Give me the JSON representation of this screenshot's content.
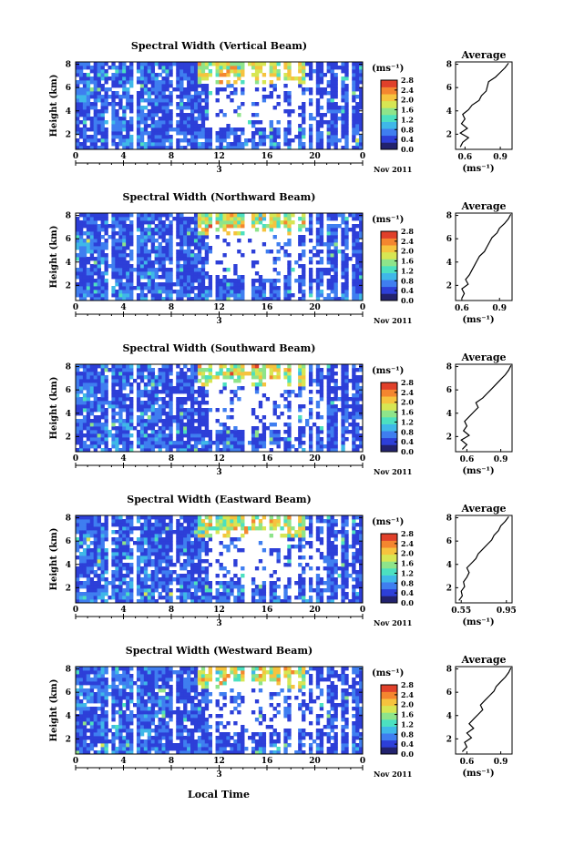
{
  "figure": {
    "xlabel": "Local Time",
    "date_label": "Nov 2011",
    "day_label": "3",
    "ylabel": "Height (km)",
    "colorbar_unit": "(ms⁻¹)",
    "profile_title": "Average",
    "profile_xlabel": "(ms⁻¹)"
  },
  "chart_data": [
    {
      "type": "heatmap",
      "title": "Spectral Width (Vertical Beam)",
      "xlabel": "Local Time",
      "ylabel": "Height (km)",
      "x_ticks": [
        "0",
        "4",
        "8",
        "12",
        "16",
        "20",
        "0"
      ],
      "y_ticks": [
        "2",
        "4",
        "6",
        "8"
      ],
      "xlim": [
        0,
        24
      ],
      "ylim": [
        0.7,
        8.2
      ],
      "colorbar": {
        "ticks": [
          "0.0",
          "0.4",
          "0.8",
          "1.2",
          "1.6",
          "2.0",
          "2.4",
          "2.8"
        ],
        "range": [
          0,
          2.8
        ]
      },
      "profile": {
        "title": "Average",
        "xlabel": "(ms⁻¹)",
        "x_ticks": [
          "0.6",
          "0.9"
        ],
        "xlim": [
          0.52,
          1.0
        ],
        "ylim": [
          0.7,
          8.2
        ],
        "heights": [
          0.9,
          1.3,
          1.7,
          2.1,
          2.5,
          2.9,
          3.3,
          3.7,
          4.1,
          4.5,
          4.9,
          5.3,
          5.7,
          6.1,
          6.5,
          6.9,
          7.3,
          7.7,
          8.1
        ],
        "values": [
          0.56,
          0.58,
          0.63,
          0.56,
          0.62,
          0.57,
          0.6,
          0.58,
          0.63,
          0.66,
          0.72,
          0.74,
          0.78,
          0.79,
          0.8,
          0.86,
          0.9,
          0.94,
          0.97
        ]
      }
    },
    {
      "type": "heatmap",
      "title": "Spectral Width (Northward Beam)",
      "xlabel": "Local Time",
      "ylabel": "Height (km)",
      "x_ticks": [
        "0",
        "4",
        "8",
        "12",
        "16",
        "20",
        "0"
      ],
      "y_ticks": [
        "2",
        "4",
        "6",
        "8"
      ],
      "xlim": [
        0,
        24
      ],
      "ylim": [
        0.7,
        8.2
      ],
      "colorbar": {
        "ticks": [
          "0.0",
          "0.4",
          "0.8",
          "1.2",
          "1.6",
          "2.0",
          "2.4",
          "2.8"
        ],
        "range": [
          0,
          2.8
        ]
      },
      "profile": {
        "title": "Average",
        "xlabel": "(ms⁻¹)",
        "x_ticks": [
          "0.6",
          "0.9"
        ],
        "xlim": [
          0.55,
          1.0
        ],
        "ylim": [
          0.7,
          8.2
        ],
        "heights": [
          0.9,
          1.3,
          1.7,
          2.1,
          2.5,
          2.9,
          3.3,
          3.7,
          4.1,
          4.5,
          4.9,
          5.3,
          5.7,
          6.1,
          6.5,
          6.9,
          7.3,
          7.7,
          8.1
        ],
        "values": [
          0.6,
          0.62,
          0.6,
          0.65,
          0.63,
          0.66,
          0.68,
          0.7,
          0.72,
          0.74,
          0.78,
          0.8,
          0.82,
          0.84,
          0.88,
          0.9,
          0.94,
          0.97,
          0.99
        ]
      }
    },
    {
      "type": "heatmap",
      "title": "Spectral Width (Southward Beam)",
      "xlabel": "Local Time",
      "ylabel": "Height (km)",
      "x_ticks": [
        "0",
        "4",
        "8",
        "12",
        "16",
        "20",
        "0"
      ],
      "y_ticks": [
        "2",
        "4",
        "6",
        "8"
      ],
      "xlim": [
        0,
        24
      ],
      "ylim": [
        0.7,
        8.2
      ],
      "colorbar": {
        "ticks": [
          "0.0",
          "0.4",
          "0.8",
          "1.2",
          "1.6",
          "2.0",
          "2.4",
          "2.8"
        ],
        "range": [
          0,
          2.8
        ]
      },
      "profile": {
        "title": "Average",
        "xlabel": "(ms⁻¹)",
        "x_ticks": [
          "0.6",
          "0.9"
        ],
        "xlim": [
          0.5,
          1.0
        ],
        "ylim": [
          0.7,
          8.2
        ],
        "heights": [
          0.9,
          1.3,
          1.7,
          2.1,
          2.5,
          2.9,
          3.3,
          3.7,
          4.1,
          4.5,
          4.9,
          5.3,
          5.7,
          6.1,
          6.5,
          6.9,
          7.3,
          7.7,
          8.1
        ],
        "values": [
          0.56,
          0.6,
          0.55,
          0.62,
          0.57,
          0.6,
          0.58,
          0.62,
          0.66,
          0.7,
          0.68,
          0.74,
          0.78,
          0.82,
          0.86,
          0.9,
          0.94,
          0.97,
          0.99
        ]
      }
    },
    {
      "type": "heatmap",
      "title": "Spectral Width (Eastward Beam)",
      "xlabel": "Local Time",
      "ylabel": "Height (km)",
      "x_ticks": [
        "0",
        "4",
        "8",
        "12",
        "16",
        "20",
        "0"
      ],
      "y_ticks": [
        "2",
        "4",
        "6",
        "8"
      ],
      "xlim": [
        0,
        24
      ],
      "ylim": [
        0.7,
        8.2
      ],
      "colorbar": {
        "ticks": [
          "0.0",
          "0.4",
          "0.8",
          "1.2",
          "1.6",
          "2.0",
          "2.4",
          "2.8"
        ],
        "range": [
          0,
          2.8
        ]
      },
      "profile": {
        "title": "Average",
        "xlabel": "(ms⁻¹)",
        "x_ticks": [
          "0.55",
          "0.95"
        ],
        "xlim": [
          0.5,
          1.0
        ],
        "ylim": [
          0.7,
          8.2
        ],
        "heights": [
          0.9,
          1.3,
          1.7,
          2.1,
          2.5,
          2.9,
          3.3,
          3.7,
          4.1,
          4.5,
          4.9,
          5.3,
          5.7,
          6.1,
          6.5,
          6.9,
          7.3,
          7.7,
          8.1
        ],
        "values": [
          0.53,
          0.56,
          0.55,
          0.58,
          0.57,
          0.6,
          0.62,
          0.6,
          0.64,
          0.68,
          0.7,
          0.74,
          0.78,
          0.82,
          0.84,
          0.88,
          0.9,
          0.94,
          0.97
        ]
      }
    },
    {
      "type": "heatmap",
      "title": "Spectral Width (Westward Beam)",
      "xlabel": "Local Time",
      "ylabel": "Height (km)",
      "x_ticks": [
        "0",
        "4",
        "8",
        "12",
        "16",
        "20",
        "0"
      ],
      "y_ticks": [
        "2",
        "4",
        "6",
        "8"
      ],
      "xlim": [
        0,
        24
      ],
      "ylim": [
        0.7,
        8.2
      ],
      "colorbar": {
        "ticks": [
          "0.0",
          "0.4",
          "0.8",
          "1.2",
          "1.6",
          "2.0",
          "2.4",
          "2.8"
        ],
        "range": [
          0,
          2.8
        ]
      },
      "profile": {
        "title": "Average",
        "xlabel": "(ms⁻¹)",
        "x_ticks": [
          "0.6",
          "0.9"
        ],
        "xlim": [
          0.5,
          1.0
        ],
        "ylim": [
          0.7,
          8.2
        ],
        "heights": [
          0.9,
          1.3,
          1.7,
          2.1,
          2.5,
          2.9,
          3.3,
          3.7,
          4.1,
          4.5,
          4.9,
          5.3,
          5.7,
          6.1,
          6.5,
          6.9,
          7.3,
          7.7,
          8.1
        ],
        "values": [
          0.56,
          0.6,
          0.58,
          0.64,
          0.6,
          0.66,
          0.62,
          0.66,
          0.7,
          0.74,
          0.72,
          0.76,
          0.8,
          0.84,
          0.86,
          0.9,
          0.94,
          0.97,
          0.99
        ]
      }
    }
  ],
  "colors": {
    "colormap": [
      "#22226e",
      "#2d3fd8",
      "#3f7ef0",
      "#3fb8e8",
      "#4ce0c0",
      "#8ee48a",
      "#d7e653",
      "#f6c33e",
      "#f4862f",
      "#e0402a"
    ]
  }
}
